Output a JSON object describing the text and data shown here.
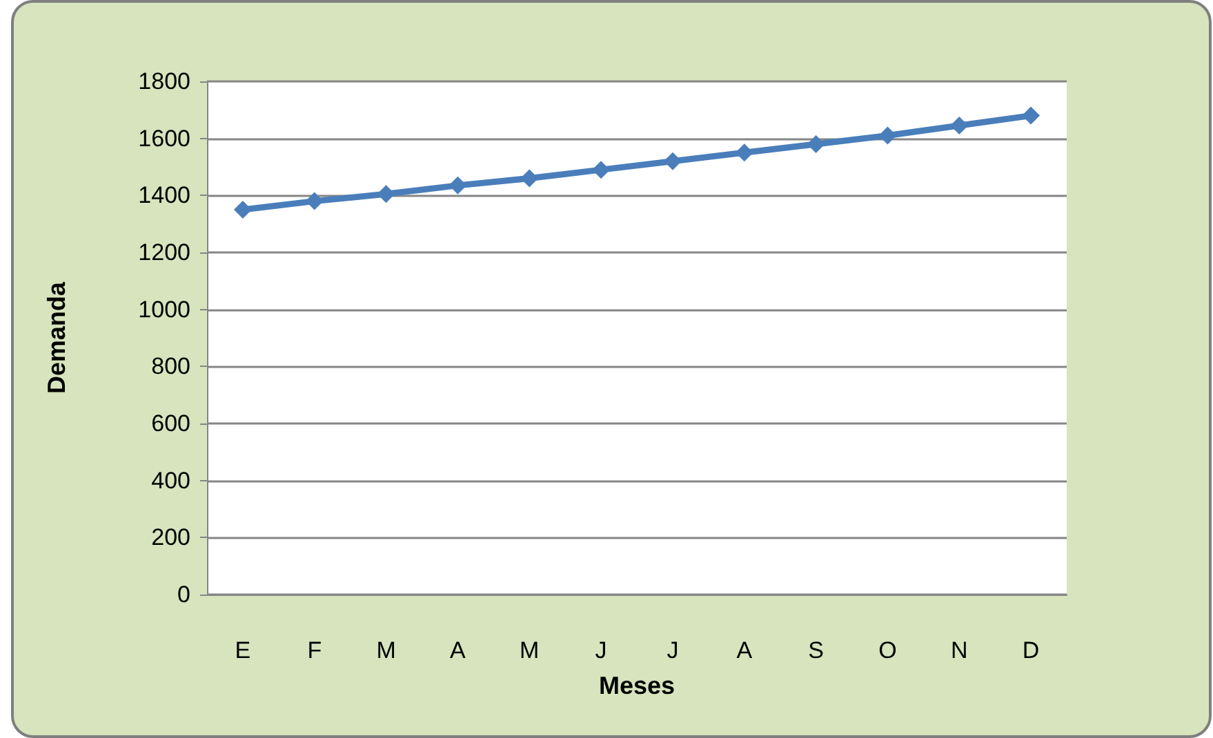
{
  "chart_data": {
    "type": "line",
    "xlabel": "Meses",
    "ylabel": "Demanda",
    "categories": [
      "E",
      "F",
      "M",
      "A",
      "M",
      "J",
      "J",
      "A",
      "S",
      "O",
      "N",
      "D"
    ],
    "series": [
      {
        "color": "#4a7ebb",
        "values": [
          1350,
          1380,
          1405,
          1435,
          1460,
          1490,
          1520,
          1550,
          1580,
          1610,
          1645,
          1680
        ]
      }
    ],
    "ylim": [
      0,
      1800
    ],
    "yticks": [
      0,
      200,
      400,
      600,
      800,
      1000,
      1200,
      1400,
      1600,
      1800
    ],
    "grid": "y",
    "marker": "diamond",
    "line_style": "solid"
  }
}
